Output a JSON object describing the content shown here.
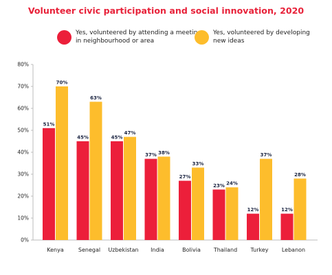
{
  "chart_data": {
    "type": "bar",
    "title": "Volunteer civic participation and social innovation, 2020",
    "categories": [
      "Kenya",
      "Senegal",
      "Uzbekistan",
      "India",
      "Bolivia",
      "Thailand",
      "Turkey",
      "Lebanon"
    ],
    "series": [
      {
        "name": "Yes, volunteered by attending a meeting in neighbourhood or area",
        "color": "#ec1f3a",
        "values": [
          51,
          45,
          45,
          37,
          27,
          23,
          12,
          12
        ],
        "labels": [
          "51%",
          "45%",
          "45%",
          "37%",
          "27%",
          "23%",
          "12%",
          "12%"
        ]
      },
      {
        "name": "Yes, volunteered by developing new ideas",
        "color": "#fdbd2c",
        "values": [
          70,
          63,
          47,
          38,
          33,
          24,
          37,
          28
        ],
        "labels": [
          "70%",
          "63%",
          "47%",
          "38%",
          "33%",
          "24%",
          "37%",
          "28%"
        ]
      }
    ],
    "yticks": [
      "0%",
      "10%",
      "20%",
      "30%",
      "40%",
      "50%",
      "60%",
      "70%",
      "80%"
    ],
    "ylim": [
      0,
      80
    ],
    "grid": false,
    "legend_position": "top"
  }
}
